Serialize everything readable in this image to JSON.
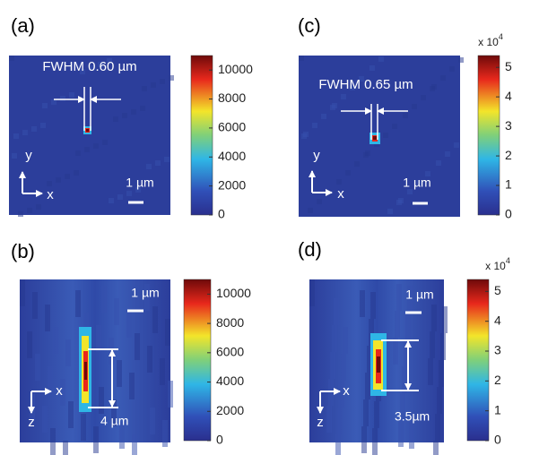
{
  "panels": [
    {
      "label": "(a)",
      "fwhm": "FWHM 0.60 µm",
      "scale": "1 µm",
      "axes": [
        "y",
        "x"
      ],
      "colorbar": {
        "lim": [
          0,
          11000
        ],
        "ticks": [
          0,
          2000,
          4000,
          6000,
          8000,
          10000
        ]
      }
    },
    {
      "label": "(b)",
      "length": "4 µm",
      "scale": "1 µm",
      "axes": [
        "x",
        "z"
      ],
      "colorbar": {
        "lim": [
          0,
          11000
        ],
        "ticks": [
          0,
          2000,
          4000,
          6000,
          8000,
          10000
        ]
      }
    },
    {
      "label": "(c)",
      "fwhm": "FWHM 0.65 µm",
      "scale": "1 µm",
      "axes": [
        "y",
        "x"
      ],
      "colorbar": {
        "lim": [
          0,
          5.4
        ],
        "ticks": [
          0,
          1,
          2,
          3,
          4,
          5
        ],
        "multiplier": {
          "base": "x 10",
          "exp": "4"
        }
      }
    },
    {
      "label": "(d)",
      "length": "3.5µm",
      "scale": "1 µm",
      "axes": [
        "x",
        "z"
      ],
      "colorbar": {
        "lim": [
          0,
          5.4
        ],
        "ticks": [
          0,
          1,
          2,
          3,
          4,
          5
        ],
        "multiplier": {
          "base": "x 10",
          "exp": "4"
        }
      }
    }
  ]
}
